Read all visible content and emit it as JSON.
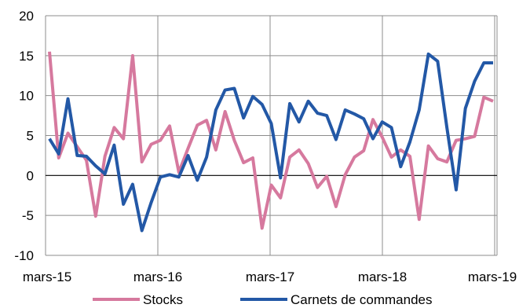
{
  "chart_data": {
    "type": "line",
    "title": "",
    "xlabel": "",
    "ylabel": "",
    "ylim": [
      -10,
      20
    ],
    "yticks": [
      -10,
      -5,
      0,
      5,
      10,
      15,
      20
    ],
    "xtick_labels": [
      "mars-15",
      "mars-16",
      "mars-17",
      "mars-18",
      "mars-19"
    ],
    "grid": true,
    "legend_position": "bottom",
    "x": [
      "2015-03",
      "2015-04",
      "2015-05",
      "2015-06",
      "2015-07",
      "2015-08",
      "2015-09",
      "2015-10",
      "2015-11",
      "2015-12",
      "2016-01",
      "2016-02",
      "2016-03",
      "2016-04",
      "2016-05",
      "2016-06",
      "2016-07",
      "2016-08",
      "2016-09",
      "2016-10",
      "2016-11",
      "2016-12",
      "2017-01",
      "2017-02",
      "2017-03",
      "2017-04",
      "2017-05",
      "2017-06",
      "2017-07",
      "2017-08",
      "2017-09",
      "2017-10",
      "2017-11",
      "2017-12",
      "2018-01",
      "2018-02",
      "2018-03",
      "2018-04",
      "2018-05",
      "2018-06",
      "2018-07",
      "2018-08",
      "2018-09",
      "2018-10",
      "2018-11",
      "2018-12",
      "2019-01",
      "2019-02",
      "2019-03"
    ],
    "series": [
      {
        "name": "Stocks",
        "color": "#d6799e",
        "values": [
          15.5,
          2.2,
          5.3,
          3.6,
          1.9,
          -5.1,
          2.4,
          6.0,
          4.6,
          15.0,
          1.7,
          3.9,
          4.4,
          6.2,
          0.4,
          3.4,
          6.3,
          6.9,
          3.2,
          8.0,
          4.4,
          1.6,
          2.2,
          -6.6,
          -1.2,
          -2.8,
          2.3,
          3.2,
          1.5,
          -1.5,
          -0.1,
          -3.9,
          0.1,
          2.3,
          3.1,
          7.0,
          4.8,
          2.3,
          3.2,
          2.4,
          -5.5,
          3.7,
          2.1,
          1.7,
          4.4,
          4.6,
          4.9,
          9.8,
          9.3
        ]
      },
      {
        "name": "Carnets de commandes",
        "color": "#2358a6",
        "values": [
          4.6,
          2.7,
          9.6,
          2.5,
          2.4,
          1.2,
          0.2,
          3.8,
          -3.6,
          -1.1,
          -6.9,
          -3.4,
          -0.2,
          0.1,
          -0.2,
          2.5,
          -0.6,
          2.3,
          8.2,
          10.7,
          10.9,
          7.2,
          9.9,
          8.9,
          6.5,
          -0.3,
          9.0,
          6.7,
          9.3,
          7.8,
          7.5,
          4.5,
          8.2,
          7.7,
          7.1,
          4.6,
          6.7,
          6.0,
          1.1,
          4.2,
          8.2,
          15.2,
          14.3,
          6.0,
          -1.8,
          8.4,
          11.8,
          14.1,
          14.1
        ]
      }
    ]
  }
}
